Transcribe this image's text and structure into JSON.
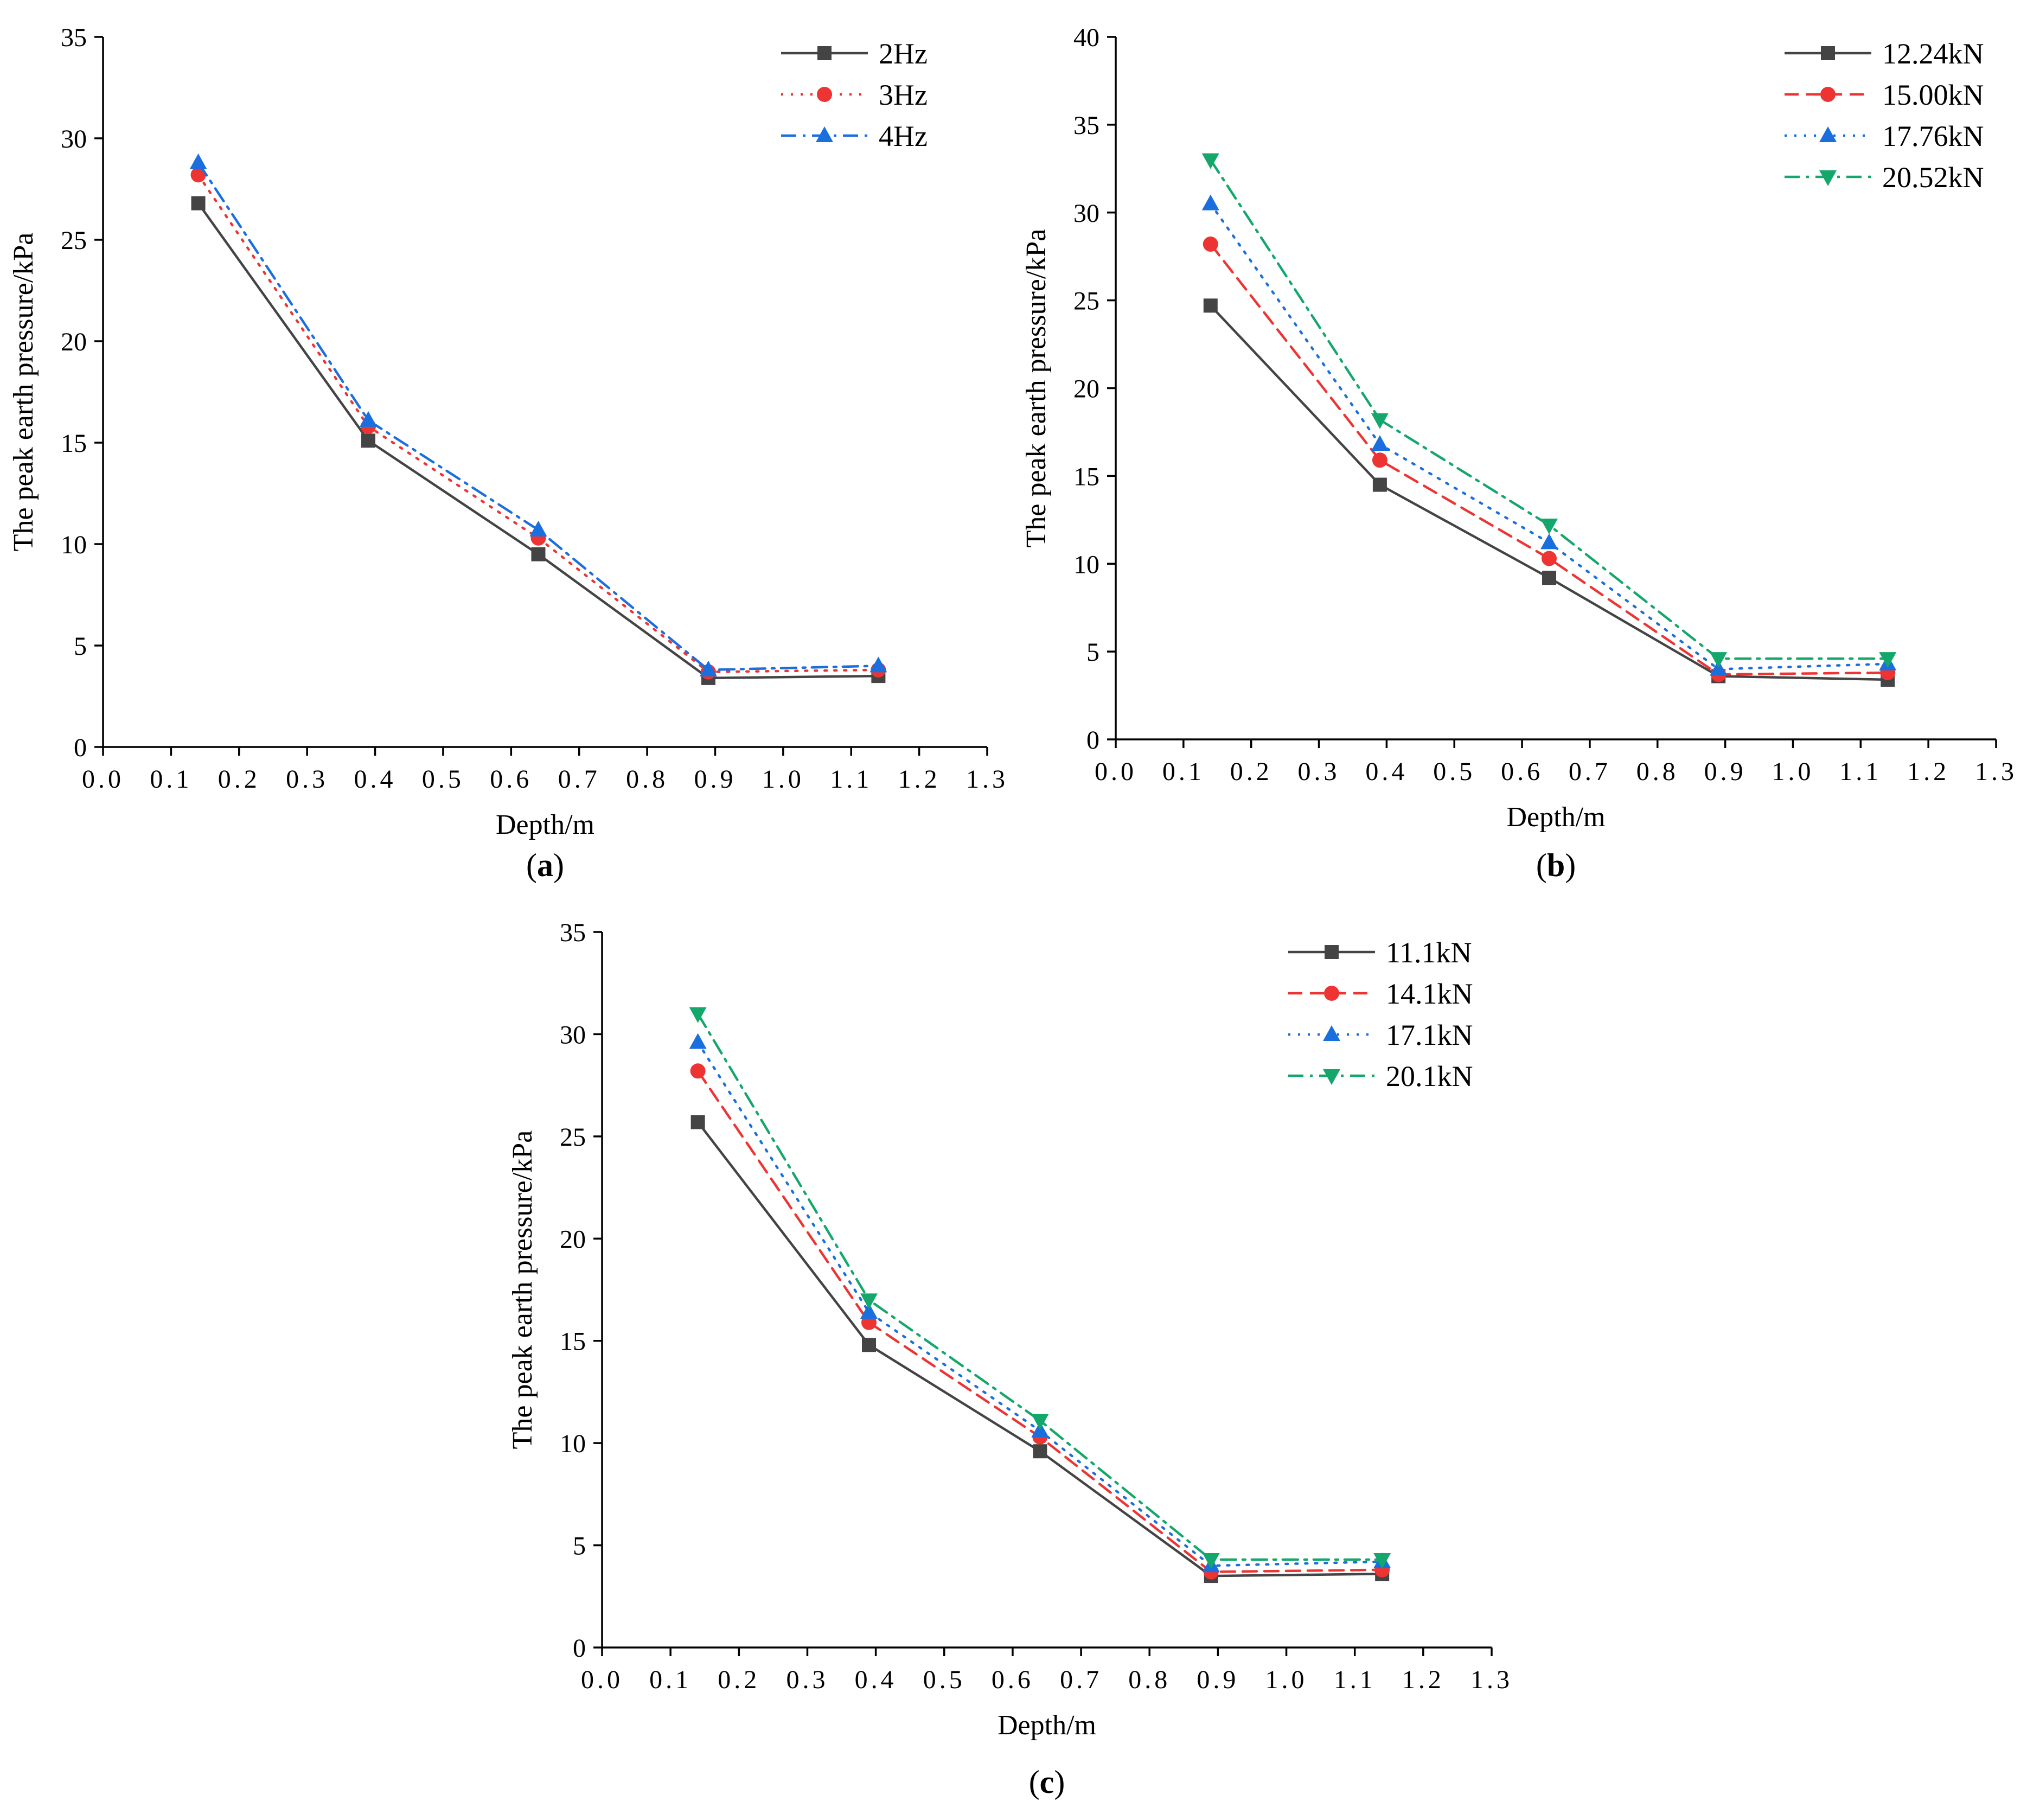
{
  "chart_data": [
    {
      "type": "line",
      "panel": "a",
      "caption_letter": "a",
      "xlabel": "Depth/m",
      "ylabel": "The peak earth pressure/kPa",
      "xlim": [
        0.0,
        1.3
      ],
      "ylim": [
        0,
        35
      ],
      "x_ticks": [
        0.0,
        0.1,
        0.2,
        0.3,
        0.4,
        0.5,
        0.6,
        0.7,
        0.8,
        0.9,
        1.0,
        1.1,
        1.2,
        1.3
      ],
      "x_tick_labels": [
        "0.0",
        "0.1",
        "0.2",
        "0.3",
        "0.4",
        "0.5",
        "0.6",
        "0.7",
        "0.8",
        "0.9",
        "1.0",
        "1.1",
        "1.2",
        "1.3"
      ],
      "y_ticks": [
        0,
        5,
        10,
        15,
        20,
        25,
        30,
        35
      ],
      "y_tick_labels": [
        "0",
        "5",
        "10",
        "15",
        "20",
        "25",
        "30",
        "35"
      ],
      "legend_position": "top-right",
      "x": [
        0.14,
        0.39,
        0.64,
        0.89,
        1.14
      ],
      "series": [
        {
          "name": "2Hz",
          "values": [
            26.8,
            15.1,
            9.5,
            3.4,
            3.5
          ],
          "color": "#444444",
          "dash": "solid",
          "marker": "square"
        },
        {
          "name": "3Hz",
          "values": [
            28.2,
            15.8,
            10.3,
            3.7,
            3.8
          ],
          "color": "#ee3333",
          "dash": "dot",
          "marker": "circle"
        },
        {
          "name": "4Hz",
          "values": [
            28.8,
            16.1,
            10.7,
            3.8,
            4.0
          ],
          "color": "#1a6fdf",
          "dash": "dashdot",
          "marker": "triangle-up"
        }
      ]
    },
    {
      "type": "line",
      "panel": "b",
      "caption_letter": "b",
      "xlabel": "Depth/m",
      "ylabel": "The peak earth pressure/kPa",
      "xlim": [
        0.0,
        1.3
      ],
      "ylim": [
        0,
        40
      ],
      "x_ticks": [
        0.0,
        0.1,
        0.2,
        0.3,
        0.4,
        0.5,
        0.6,
        0.7,
        0.8,
        0.9,
        1.0,
        1.1,
        1.2,
        1.3
      ],
      "x_tick_labels": [
        "0.0",
        "0.1",
        "0.2",
        "0.3",
        "0.4",
        "0.5",
        "0.6",
        "0.7",
        "0.8",
        "0.9",
        "1.0",
        "1.1",
        "1.2",
        "1.3"
      ],
      "y_ticks": [
        0,
        5,
        10,
        15,
        20,
        25,
        30,
        35,
        40
      ],
      "y_tick_labels": [
        "0",
        "5",
        "10",
        "15",
        "20",
        "25",
        "30",
        "35",
        "40"
      ],
      "legend_position": "top-right",
      "x": [
        0.14,
        0.39,
        0.64,
        0.89,
        1.14
      ],
      "series": [
        {
          "name": "12.24kN",
          "values": [
            24.7,
            14.5,
            9.2,
            3.6,
            3.4
          ],
          "color": "#444444",
          "dash": "solid",
          "marker": "square"
        },
        {
          "name": "15.00kN",
          "values": [
            28.2,
            15.9,
            10.3,
            3.7,
            3.8
          ],
          "color": "#ee3333",
          "dash": "dash",
          "marker": "circle"
        },
        {
          "name": "17.76kN",
          "values": [
            30.5,
            16.8,
            11.2,
            4.0,
            4.3
          ],
          "color": "#1a6fdf",
          "dash": "dot",
          "marker": "triangle-up"
        },
        {
          "name": "20.52kN",
          "values": [
            33.0,
            18.2,
            12.2,
            4.6,
            4.6
          ],
          "color": "#14a76c",
          "dash": "dashdot",
          "marker": "triangle-down"
        }
      ]
    },
    {
      "type": "line",
      "panel": "c",
      "caption_letter": "c",
      "xlabel": "Depth/m",
      "ylabel": "The peak earth pressure/kPa",
      "xlim": [
        0.0,
        1.3
      ],
      "ylim": [
        0,
        35
      ],
      "x_ticks": [
        0.0,
        0.1,
        0.2,
        0.3,
        0.4,
        0.5,
        0.6,
        0.7,
        0.8,
        0.9,
        1.0,
        1.1,
        1.2,
        1.3
      ],
      "x_tick_labels": [
        "0.0",
        "0.1",
        "0.2",
        "0.3",
        "0.4",
        "0.5",
        "0.6",
        "0.7",
        "0.8",
        "0.9",
        "1.0",
        "1.1",
        "1.2",
        "1.3"
      ],
      "y_ticks": [
        0,
        5,
        10,
        15,
        20,
        25,
        30,
        35
      ],
      "y_tick_labels": [
        "0",
        "5",
        "10",
        "15",
        "20",
        "25",
        "30",
        "35"
      ],
      "legend_position": "top-right",
      "x": [
        0.14,
        0.39,
        0.64,
        0.89,
        1.14
      ],
      "series": [
        {
          "name": "11.1kN",
          "values": [
            25.7,
            14.8,
            9.6,
            3.5,
            3.6
          ],
          "color": "#444444",
          "dash": "solid",
          "marker": "square"
        },
        {
          "name": "14.1kN",
          "values": [
            28.2,
            15.9,
            10.3,
            3.7,
            3.8
          ],
          "color": "#ee3333",
          "dash": "dash",
          "marker": "circle"
        },
        {
          "name": "17.1kN",
          "values": [
            29.6,
            16.4,
            10.6,
            4.0,
            4.2
          ],
          "color": "#1a6fdf",
          "dash": "dot",
          "marker": "triangle-up"
        },
        {
          "name": "20.1kN",
          "values": [
            31.0,
            17.0,
            11.1,
            4.3,
            4.3
          ],
          "color": "#14a76c",
          "dash": "dashdot",
          "marker": "triangle-down"
        }
      ]
    }
  ]
}
